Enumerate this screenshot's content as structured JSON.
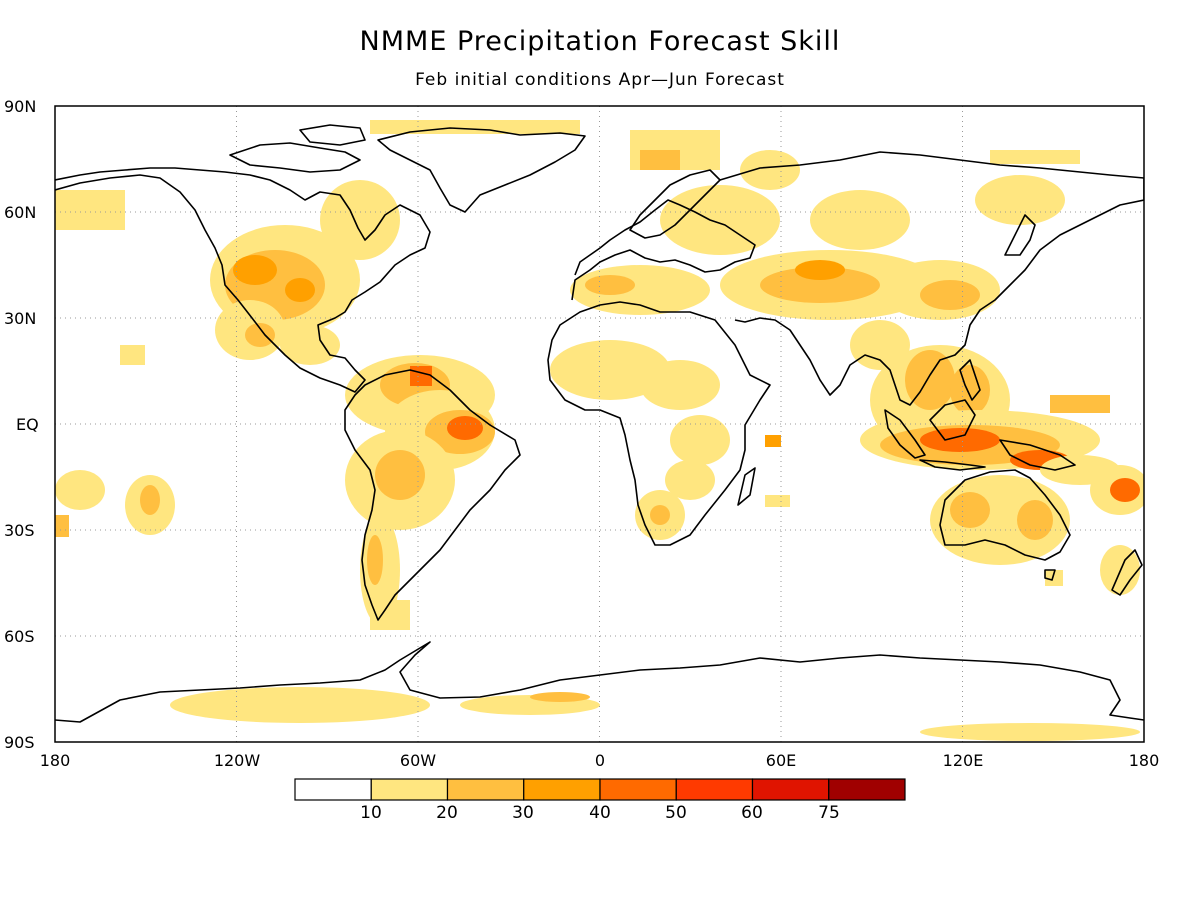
{
  "title": "NMME Precipitation Forecast Skill",
  "subtitle": "Feb initial conditions  Apr—Jun Forecast",
  "axes": {
    "lat_labels": [
      "90N",
      "60N",
      "30N",
      "EQ",
      "30S",
      "60S",
      "90S"
    ],
    "lon_labels": [
      "180",
      "120W",
      "60W",
      "0",
      "60E",
      "120E",
      "180"
    ]
  },
  "colorbar": {
    "colors": [
      "#ffffff",
      "#ffe680",
      "#ffbf40",
      "#ffa000",
      "#ff6a00",
      "#ff3a00",
      "#e01400",
      "#a00000"
    ],
    "labels": [
      "10",
      "20",
      "30",
      "40",
      "50",
      "60",
      "75"
    ]
  }
}
